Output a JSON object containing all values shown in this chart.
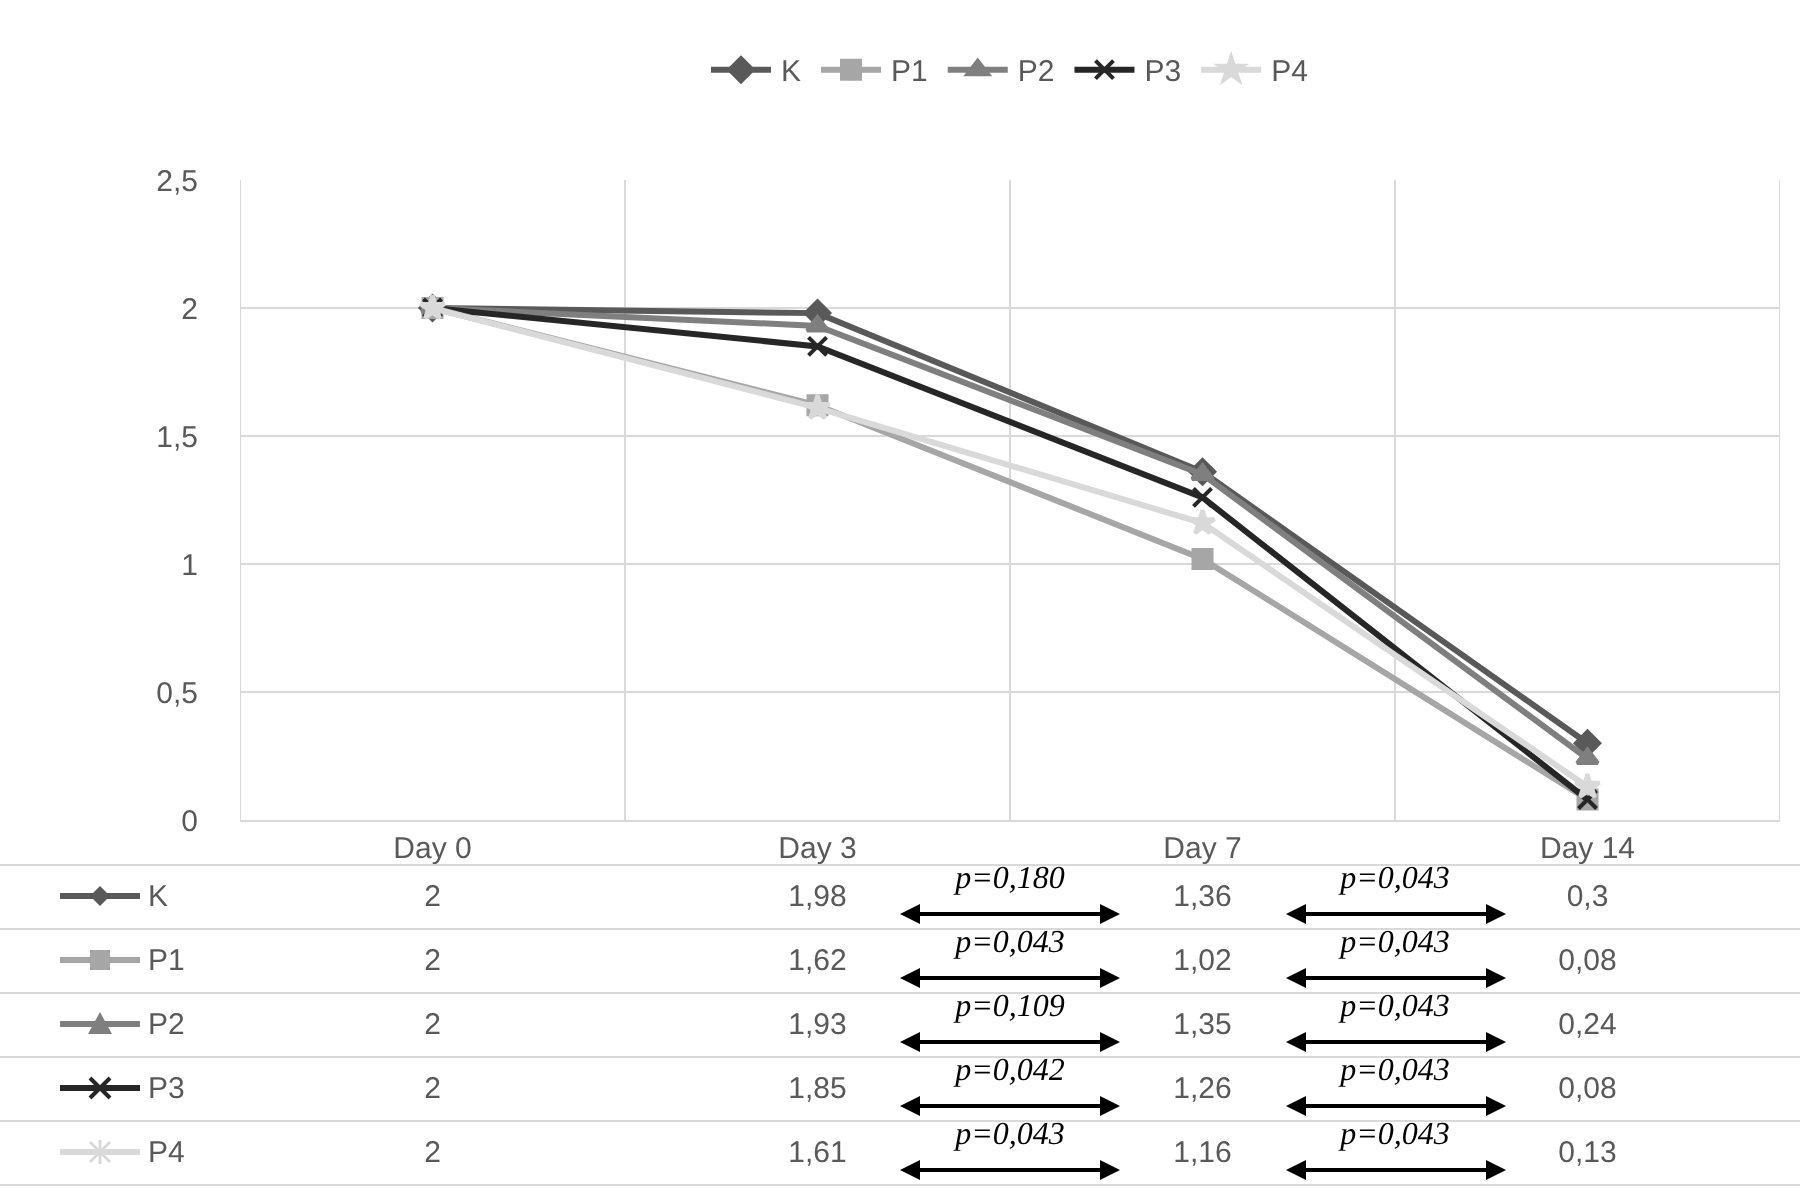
{
  "chart_data": {
    "type": "line",
    "categories": [
      "Day 0",
      "Day 3",
      "Day 7",
      "Day 14"
    ],
    "series": [
      {
        "name": "K",
        "color": "#595959",
        "marker": "diamond",
        "values": [
          2,
          1.98,
          1.36,
          0.3
        ],
        "value_labels": [
          "2",
          "1,98",
          "1,36",
          "0,3"
        ]
      },
      {
        "name": "P1",
        "color": "#a6a6a6",
        "marker": "square",
        "values": [
          2,
          1.62,
          1.02,
          0.08
        ],
        "value_labels": [
          "2",
          "1,62",
          "1,02",
          "0,08"
        ]
      },
      {
        "name": "P2",
        "color": "#7f7f7f",
        "marker": "triangle",
        "values": [
          2,
          1.93,
          1.35,
          0.24
        ],
        "value_labels": [
          "2",
          "1,93",
          "1,35",
          "0,24"
        ]
      },
      {
        "name": "P3",
        "color": "#262626",
        "marker": "cross",
        "values": [
          2,
          1.85,
          1.26,
          0.08
        ],
        "value_labels": [
          "2",
          "1,85",
          "1,26",
          "0,08"
        ]
      },
      {
        "name": "P4",
        "color": "#d9d9d9",
        "marker": "star",
        "values": [
          2,
          1.61,
          1.16,
          0.13
        ],
        "value_labels": [
          "2",
          "1,61",
          "1,16",
          "0,13"
        ]
      }
    ],
    "ylim": [
      0,
      2.5
    ],
    "yticks": [
      0,
      {
        "value": 0.5,
        "label": "0,5"
      },
      1,
      {
        "value": 1.5,
        "label": "1,5"
      },
      2,
      {
        "value": 2.5,
        "label": "2,5"
      }
    ],
    "grid": true,
    "legend": "top",
    "annotations": [
      "p=0,180",
      "p=0,043",
      "p=0,043",
      "p=0,043",
      "p=0,109",
      "p=0,043",
      "p=0,042",
      "p=0,043",
      "p=0,043",
      "p=0,043"
    ]
  }
}
